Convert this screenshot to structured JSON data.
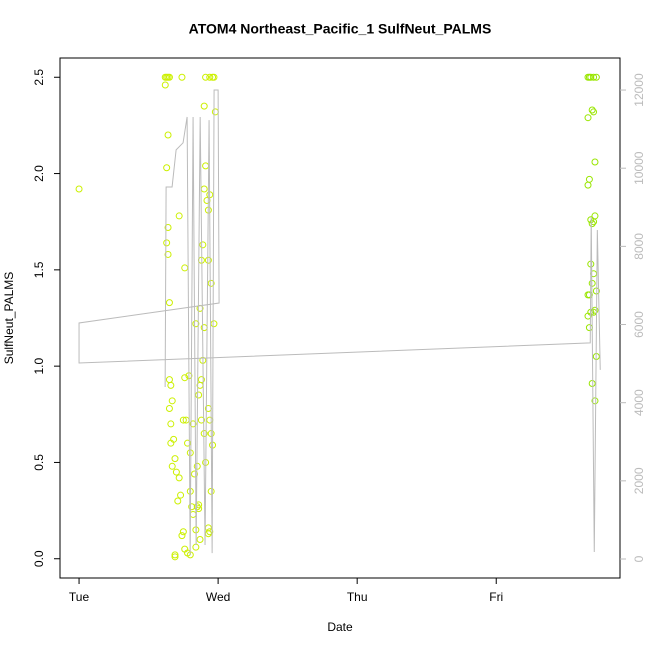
{
  "chart_data": {
    "type": "scatter",
    "title": "ATOM4 Northeast_Pacific_1 SulfNeut_PALMS",
    "x_label": "Date",
    "y_label": "SulfNeut_PALMS",
    "xlim": [
      -0.137,
      3.89
    ],
    "ylim": [
      -0.1,
      2.6
    ],
    "y2lim": [
      -486,
      12820
    ],
    "xticks": [
      {
        "value": 0,
        "label": "Tue"
      },
      {
        "value": 1,
        "label": "Wed"
      },
      {
        "value": 2,
        "label": "Thu"
      },
      {
        "value": 3,
        "label": "Fri"
      }
    ],
    "yticks": [
      {
        "value": 0,
        "label": "0.0"
      },
      0.5,
      {
        "value": 1,
        "label": "1.0"
      },
      1.5,
      {
        "value": 2,
        "label": "2.0"
      },
      2.5
    ],
    "y2ticks": [
      0,
      2000,
      4000,
      6000,
      8000,
      10000,
      12000
    ],
    "series": [
      {
        "type": "scatter",
        "color": "#ccf000",
        "x": [
          0,
          0.62,
          0.63,
          0.64,
          0.65,
          0.74,
          0.62,
          0.64,
          0.63,
          0.64,
          0.63,
          0.64,
          0.65,
          0.72,
          0.76,
          0.65,
          0.66,
          0.65,
          0.67,
          0.66,
          0.68,
          0.66,
          0.69,
          0.67,
          0.7,
          0.72,
          0.71,
          0.73,
          0.75,
          0.74,
          0.69,
          0.69,
          0.76,
          0.78,
          0.8,
          0.77,
          0.75,
          0.78,
          0.76,
          0.79,
          0.8,
          0.81,
          0.82,
          0.84,
          0.85,
          0.86,
          0.87,
          0.88,
          0.89,
          0.9,
          0.84,
          0.87,
          0.88,
          0.89,
          0.9,
          0.91,
          0.9,
          0.92,
          0.93,
          0.94,
          0.93,
          0.95,
          0.97,
          0.88,
          0.9,
          0.91,
          0.93,
          0.94,
          0.95,
          0.96,
          0.95,
          0.93,
          0.93,
          0.94,
          0.86,
          0.85,
          0.87,
          0.84,
          0.86,
          0.91,
          0.94,
          0.96,
          0.97,
          0.98,
          0.8,
          0.82,
          0.83
        ],
        "values": [
          1.92,
          2.5,
          2.5,
          2.5,
          2.5,
          2.5,
          2.46,
          2.2,
          2.03,
          1.72,
          1.64,
          1.58,
          1.33,
          1.78,
          1.51,
          0.93,
          0.9,
          0.78,
          0.82,
          0.7,
          0.62,
          0.6,
          0.52,
          0.48,
          0.45,
          0.42,
          0.3,
          0.33,
          0.14,
          0.12,
          0.02,
          0.01,
          0.05,
          0.03,
          0.02,
          0.72,
          0.72,
          0.6,
          0.94,
          0.95,
          0.55,
          0.27,
          0.23,
          0.15,
          0.48,
          0.85,
          0.9,
          0.93,
          1.03,
          1.2,
          1.22,
          1.3,
          1.55,
          1.63,
          1.92,
          2.04,
          2.35,
          1.86,
          1.81,
          1.89,
          1.55,
          1.43,
          1.22,
          0.72,
          0.65,
          0.5,
          0.78,
          0.72,
          0.65,
          0.59,
          0.35,
          0.16,
          0.13,
          0.14,
          0.28,
          0.27,
          0.1,
          0.06,
          0.26,
          2.5,
          2.5,
          2.5,
          2.5,
          2.32,
          0.35,
          0.7,
          0.44
        ]
      },
      {
        "type": "scatter",
        "color": "#99e600",
        "x": [
          3.66,
          3.67,
          3.68,
          3.7,
          3.72,
          3.69,
          3.7,
          3.66,
          3.71,
          3.67,
          3.66,
          3.68,
          3.69,
          3.7,
          3.71,
          3.68,
          3.7,
          3.69,
          3.72,
          3.66,
          3.67,
          3.68,
          3.7,
          3.71,
          3.66,
          3.67,
          3.72,
          3.69,
          3.71
        ],
        "values": [
          2.5,
          2.5,
          2.5,
          2.5,
          2.5,
          2.33,
          2.32,
          2.29,
          2.06,
          1.97,
          1.94,
          1.76,
          1.74,
          1.75,
          1.78,
          1.53,
          1.48,
          1.43,
          1.39,
          1.37,
          1.37,
          1.28,
          1.28,
          1.29,
          1.26,
          1.2,
          1.05,
          0.91,
          0.82
        ]
      },
      {
        "type": "line",
        "axis": "y2",
        "color": "#bbbbbb",
        "x": [
          0.619,
          0.626,
          0.669,
          0.698,
          0.748,
          0.777,
          0.799,
          0.82,
          0.842,
          0.871,
          0.906,
          0.935,
          0.957,
          0.971,
          1.0,
          1.007,
          0,
          0,
          3.676,
          3.683,
          3.705,
          3.727,
          3.748
        ],
        "values": [
          4400,
          9520,
          9520,
          10470,
          10650,
          11310,
          100,
          11310,
          360,
          11310,
          360,
          11230,
          150,
          12000,
          12000,
          6550,
          6040,
          5015,
          5530,
          8750,
          180,
          8420,
          4840
        ]
      }
    ]
  }
}
